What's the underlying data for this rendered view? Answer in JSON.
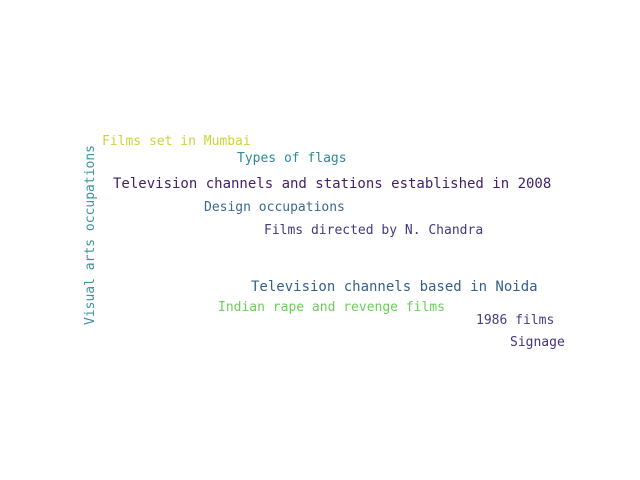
{
  "word_cloud": {
    "words": [
      {
        "text": "Television channels and stations established in 2008",
        "color": "#3f1f6b"
      },
      {
        "text": "Television channels based in Noida",
        "color": "#355f8d"
      },
      {
        "text": "Films directed by N. Chandra",
        "color": "#453781"
      },
      {
        "text": "Indian rape and revenge films",
        "color": "#6ccd5a"
      },
      {
        "text": "Design occupations",
        "color": "#3a6a92"
      },
      {
        "text": "Types of flags",
        "color": "#2c8b98"
      },
      {
        "text": "Films set in Mumbai",
        "color": "#c9d43a"
      },
      {
        "text": "1986 films",
        "color": "#433e85"
      },
      {
        "text": "Signage",
        "color": "#46327e"
      },
      {
        "text": "Visual arts occupations",
        "color": "#3b93a2"
      }
    ]
  }
}
